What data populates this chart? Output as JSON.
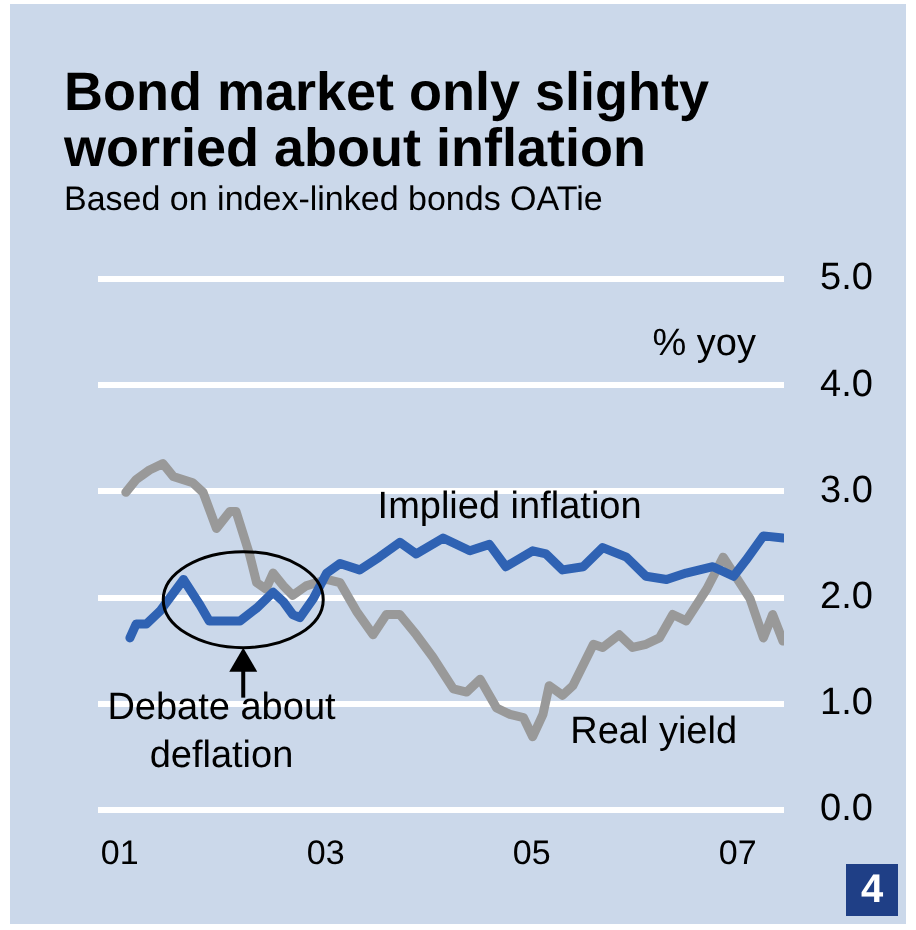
{
  "chart_data": {
    "type": "line",
    "title": "Bond market only slighty worried about inflation",
    "subtitle": "Based on index-linked bonds OATie",
    "ylabel": "% yoy",
    "series": [
      {
        "name": "Implied inflation",
        "color": "#2f62b3",
        "x": [
          2001.1,
          2001.16,
          2001.26,
          2001.39,
          2001.62,
          2001.78,
          2001.87,
          2002.07,
          2002.17,
          2002.33,
          2002.49,
          2002.59,
          2002.68,
          2002.75,
          2002.88,
          2003.01,
          2003.14,
          2003.33,
          2003.52,
          2003.72,
          2003.88,
          2004.14,
          2004.4,
          2004.59,
          2004.75,
          2005.01,
          2005.14,
          2005.3,
          2005.5,
          2005.69,
          2005.92,
          2006.11,
          2006.31,
          2006.5,
          2006.63,
          2006.76,
          2006.96,
          2007.08,
          2007.25,
          2007.44
        ],
        "values": [
          1.62,
          1.75,
          1.75,
          1.87,
          2.17,
          1.93,
          1.78,
          1.78,
          1.78,
          1.9,
          2.05,
          1.96,
          1.84,
          1.81,
          1.99,
          2.23,
          2.32,
          2.26,
          2.38,
          2.52,
          2.41,
          2.56,
          2.44,
          2.5,
          2.29,
          2.44,
          2.41,
          2.26,
          2.29,
          2.47,
          2.38,
          2.2,
          2.17,
          2.23,
          2.26,
          2.29,
          2.2,
          2.35,
          2.58,
          2.56
        ]
      },
      {
        "name": "Real yield",
        "color": "#999999",
        "x": [
          2001.06,
          2001.16,
          2001.29,
          2001.42,
          2001.52,
          2001.71,
          2001.81,
          2001.94,
          2002.07,
          2002.13,
          2002.26,
          2002.33,
          2002.42,
          2002.49,
          2002.59,
          2002.68,
          2002.81,
          2003.01,
          2003.14,
          2003.3,
          2003.46,
          2003.59,
          2003.72,
          2003.88,
          2004.04,
          2004.24,
          2004.37,
          2004.5,
          2004.66,
          2004.79,
          2004.92,
          2005.01,
          2005.11,
          2005.17,
          2005.3,
          2005.4,
          2005.6,
          2005.69,
          2005.85,
          2005.98,
          2006.11,
          2006.24,
          2006.37,
          2006.5,
          2006.7,
          2006.86,
          2006.96,
          2007.12,
          2007.25,
          2007.34,
          2007.44
        ],
        "values": [
          2.99,
          3.11,
          3.2,
          3.26,
          3.14,
          3.08,
          2.99,
          2.65,
          2.81,
          2.81,
          2.41,
          2.14,
          2.08,
          2.23,
          2.11,
          2.02,
          2.11,
          2.17,
          2.14,
          1.87,
          1.65,
          1.84,
          1.84,
          1.65,
          1.44,
          1.14,
          1.11,
          1.23,
          0.96,
          0.9,
          0.87,
          0.69,
          0.9,
          1.17,
          1.08,
          1.17,
          1.56,
          1.53,
          1.65,
          1.53,
          1.56,
          1.62,
          1.84,
          1.78,
          2.08,
          2.38,
          2.23,
          1.99,
          1.62,
          1.84,
          1.59
        ]
      }
    ],
    "xlim": [
      2000.79,
      2007.45
    ],
    "xticks": [
      {
        "value": 2001,
        "label": "01"
      },
      {
        "value": 2003,
        "label": "03"
      },
      {
        "value": 2005,
        "label": "05"
      },
      {
        "value": 2007,
        "label": "07"
      }
    ],
    "ylim": [
      0,
      5
    ],
    "yticks": [
      {
        "value": 0,
        "label": "0.0"
      },
      {
        "value": 1,
        "label": "1.0"
      },
      {
        "value": 2,
        "label": "2.0"
      },
      {
        "value": 3,
        "label": "3.0"
      },
      {
        "value": 4,
        "label": "4.0"
      },
      {
        "value": 5,
        "label": "5.0"
      }
    ],
    "grid": "y",
    "legend": false,
    "annotations": [
      "Debate about deflation",
      "4"
    ]
  }
}
